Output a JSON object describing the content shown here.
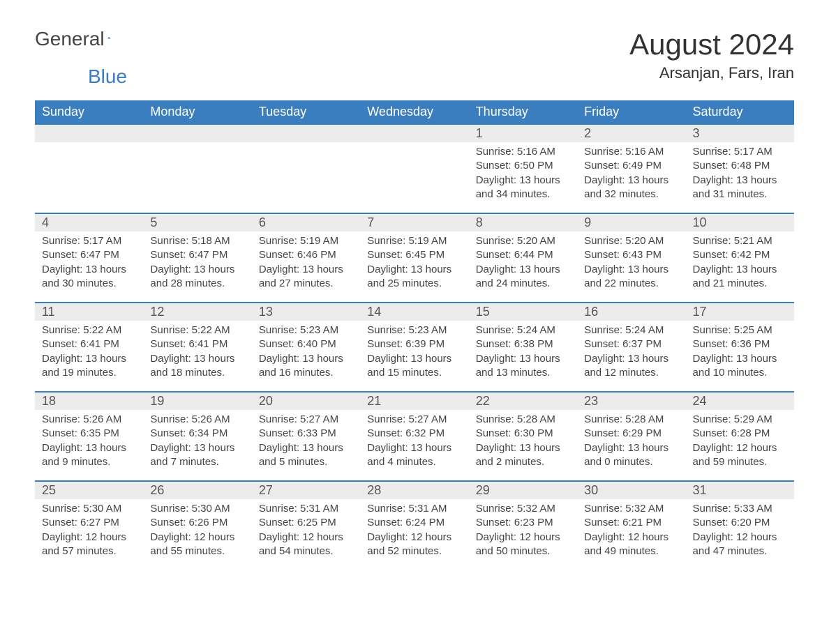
{
  "logo": {
    "general": "General",
    "blue": "Blue"
  },
  "title": "August 2024",
  "location": "Arsanjan, Fars, Iran",
  "colors": {
    "header_bg": "#3b7ec0",
    "header_text": "#ffffff",
    "daynum_bg": "#ececec",
    "border": "#3b7ec0",
    "body_text": "#444444",
    "page_bg": "#ffffff"
  },
  "weekdays": [
    "Sunday",
    "Monday",
    "Tuesday",
    "Wednesday",
    "Thursday",
    "Friday",
    "Saturday"
  ],
  "first_weekday_index": 4,
  "days": [
    {
      "n": 1,
      "sunrise": "5:16 AM",
      "sunset": "6:50 PM",
      "daylight": "13 hours and 34 minutes."
    },
    {
      "n": 2,
      "sunrise": "5:16 AM",
      "sunset": "6:49 PM",
      "daylight": "13 hours and 32 minutes."
    },
    {
      "n": 3,
      "sunrise": "5:17 AM",
      "sunset": "6:48 PM",
      "daylight": "13 hours and 31 minutes."
    },
    {
      "n": 4,
      "sunrise": "5:17 AM",
      "sunset": "6:47 PM",
      "daylight": "13 hours and 30 minutes."
    },
    {
      "n": 5,
      "sunrise": "5:18 AM",
      "sunset": "6:47 PM",
      "daylight": "13 hours and 28 minutes."
    },
    {
      "n": 6,
      "sunrise": "5:19 AM",
      "sunset": "6:46 PM",
      "daylight": "13 hours and 27 minutes."
    },
    {
      "n": 7,
      "sunrise": "5:19 AM",
      "sunset": "6:45 PM",
      "daylight": "13 hours and 25 minutes."
    },
    {
      "n": 8,
      "sunrise": "5:20 AM",
      "sunset": "6:44 PM",
      "daylight": "13 hours and 24 minutes."
    },
    {
      "n": 9,
      "sunrise": "5:20 AM",
      "sunset": "6:43 PM",
      "daylight": "13 hours and 22 minutes."
    },
    {
      "n": 10,
      "sunrise": "5:21 AM",
      "sunset": "6:42 PM",
      "daylight": "13 hours and 21 minutes."
    },
    {
      "n": 11,
      "sunrise": "5:22 AM",
      "sunset": "6:41 PM",
      "daylight": "13 hours and 19 minutes."
    },
    {
      "n": 12,
      "sunrise": "5:22 AM",
      "sunset": "6:41 PM",
      "daylight": "13 hours and 18 minutes."
    },
    {
      "n": 13,
      "sunrise": "5:23 AM",
      "sunset": "6:40 PM",
      "daylight": "13 hours and 16 minutes."
    },
    {
      "n": 14,
      "sunrise": "5:23 AM",
      "sunset": "6:39 PM",
      "daylight": "13 hours and 15 minutes."
    },
    {
      "n": 15,
      "sunrise": "5:24 AM",
      "sunset": "6:38 PM",
      "daylight": "13 hours and 13 minutes."
    },
    {
      "n": 16,
      "sunrise": "5:24 AM",
      "sunset": "6:37 PM",
      "daylight": "13 hours and 12 minutes."
    },
    {
      "n": 17,
      "sunrise": "5:25 AM",
      "sunset": "6:36 PM",
      "daylight": "13 hours and 10 minutes."
    },
    {
      "n": 18,
      "sunrise": "5:26 AM",
      "sunset": "6:35 PM",
      "daylight": "13 hours and 9 minutes."
    },
    {
      "n": 19,
      "sunrise": "5:26 AM",
      "sunset": "6:34 PM",
      "daylight": "13 hours and 7 minutes."
    },
    {
      "n": 20,
      "sunrise": "5:27 AM",
      "sunset": "6:33 PM",
      "daylight": "13 hours and 5 minutes."
    },
    {
      "n": 21,
      "sunrise": "5:27 AM",
      "sunset": "6:32 PM",
      "daylight": "13 hours and 4 minutes."
    },
    {
      "n": 22,
      "sunrise": "5:28 AM",
      "sunset": "6:30 PM",
      "daylight": "13 hours and 2 minutes."
    },
    {
      "n": 23,
      "sunrise": "5:28 AM",
      "sunset": "6:29 PM",
      "daylight": "13 hours and 0 minutes."
    },
    {
      "n": 24,
      "sunrise": "5:29 AM",
      "sunset": "6:28 PM",
      "daylight": "12 hours and 59 minutes."
    },
    {
      "n": 25,
      "sunrise": "5:30 AM",
      "sunset": "6:27 PM",
      "daylight": "12 hours and 57 minutes."
    },
    {
      "n": 26,
      "sunrise": "5:30 AM",
      "sunset": "6:26 PM",
      "daylight": "12 hours and 55 minutes."
    },
    {
      "n": 27,
      "sunrise": "5:31 AM",
      "sunset": "6:25 PM",
      "daylight": "12 hours and 54 minutes."
    },
    {
      "n": 28,
      "sunrise": "5:31 AM",
      "sunset": "6:24 PM",
      "daylight": "12 hours and 52 minutes."
    },
    {
      "n": 29,
      "sunrise": "5:32 AM",
      "sunset": "6:23 PM",
      "daylight": "12 hours and 50 minutes."
    },
    {
      "n": 30,
      "sunrise": "5:32 AM",
      "sunset": "6:21 PM",
      "daylight": "12 hours and 49 minutes."
    },
    {
      "n": 31,
      "sunrise": "5:33 AM",
      "sunset": "6:20 PM",
      "daylight": "12 hours and 47 minutes."
    }
  ],
  "labels": {
    "sunrise": "Sunrise:",
    "sunset": "Sunset:",
    "daylight": "Daylight:"
  }
}
